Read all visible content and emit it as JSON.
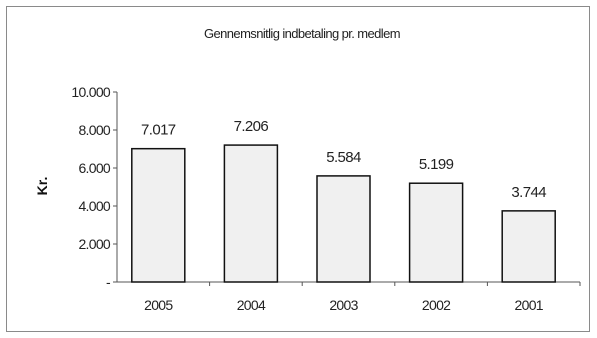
{
  "chart_data": {
    "type": "bar",
    "title": "Gennemsnitlig indbetaling pr. medlem",
    "xlabel": "",
    "ylabel": "Kr.",
    "categories": [
      "2005",
      "2004",
      "2003",
      "2002",
      "2001"
    ],
    "values": [
      7017,
      7206,
      5584,
      5199,
      3744
    ],
    "value_labels": [
      "7.017",
      "7.206",
      "5.584",
      "5.199",
      "3.744"
    ],
    "ylim": [
      0,
      10000
    ],
    "yticks": [
      0,
      2000,
      4000,
      6000,
      8000,
      10000
    ],
    "ytick_labels": [
      "-",
      "2.000",
      "4.000",
      "6.000",
      "8.000",
      "10.000"
    ],
    "grid": false,
    "legend": "none",
    "bar_fill": "#f0f0f0",
    "bar_stroke": "#111111",
    "axis_color": "#555555"
  }
}
